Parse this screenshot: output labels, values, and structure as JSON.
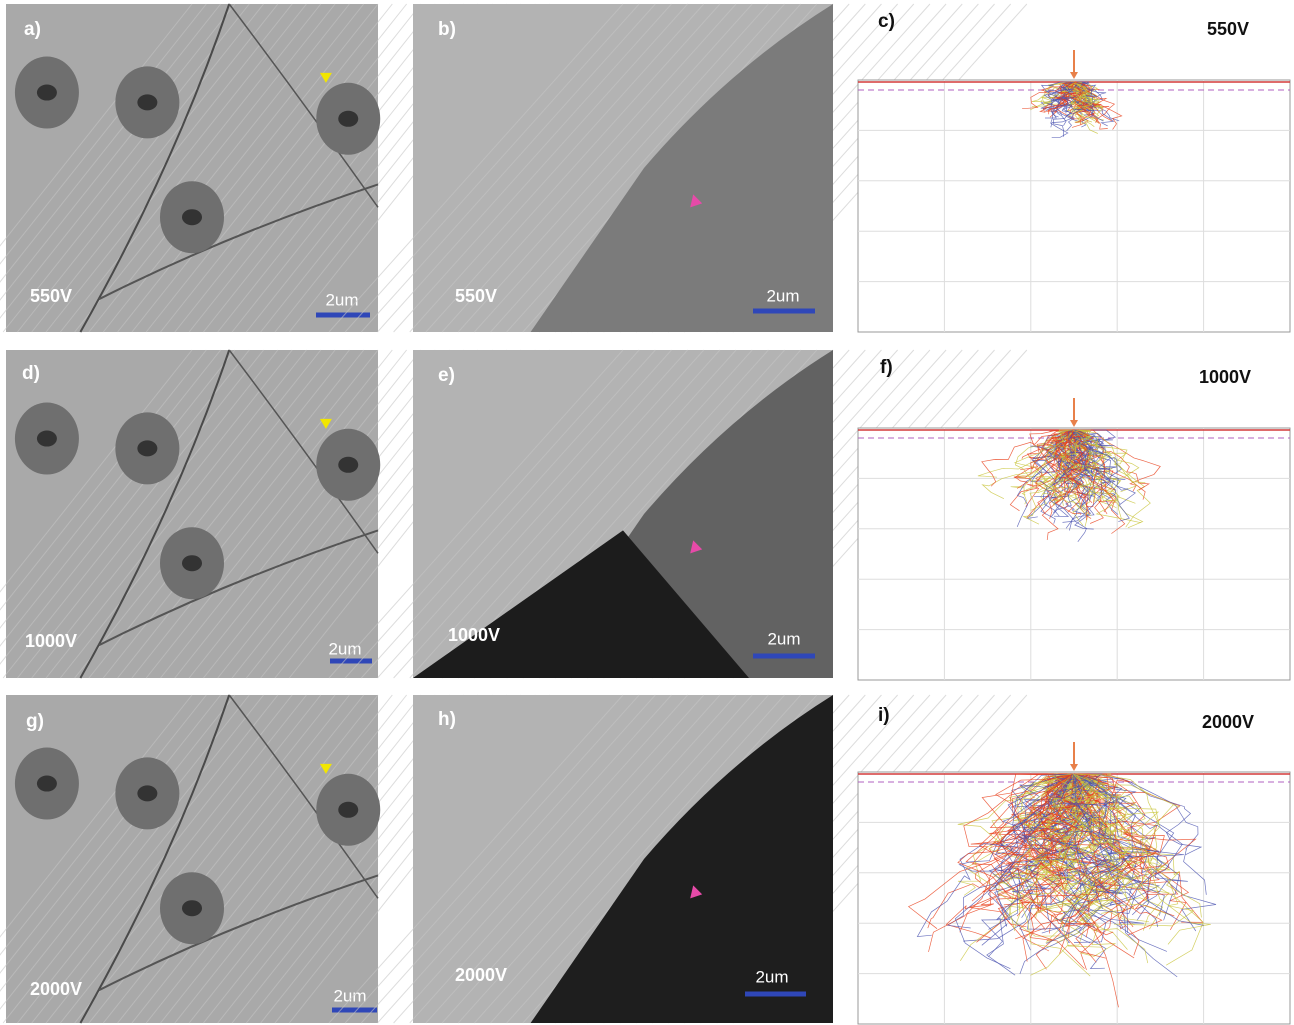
{
  "images": [
    {
      "label": "a)",
      "voltage": "550V",
      "scale_bar": "2um"
    },
    {
      "label": "b)",
      "voltage": "550V",
      "scale_bar": "2um"
    },
    {
      "label": "d)",
      "voltage": "1000V",
      "scale_bar": "2um"
    },
    {
      "label": "e)",
      "voltage": "1000V",
      "scale_bar": "2um"
    },
    {
      "label": "g)",
      "voltage": "2000V",
      "scale_bar": "2um"
    },
    {
      "label": "h)",
      "voltage": "2000V",
      "scale_bar": "2um"
    }
  ],
  "simulations": [
    {
      "label": "c)",
      "voltage": "550V"
    },
    {
      "label": "f)",
      "voltage": "1000V"
    },
    {
      "label": "i)",
      "voltage": "2000V"
    }
  ]
}
